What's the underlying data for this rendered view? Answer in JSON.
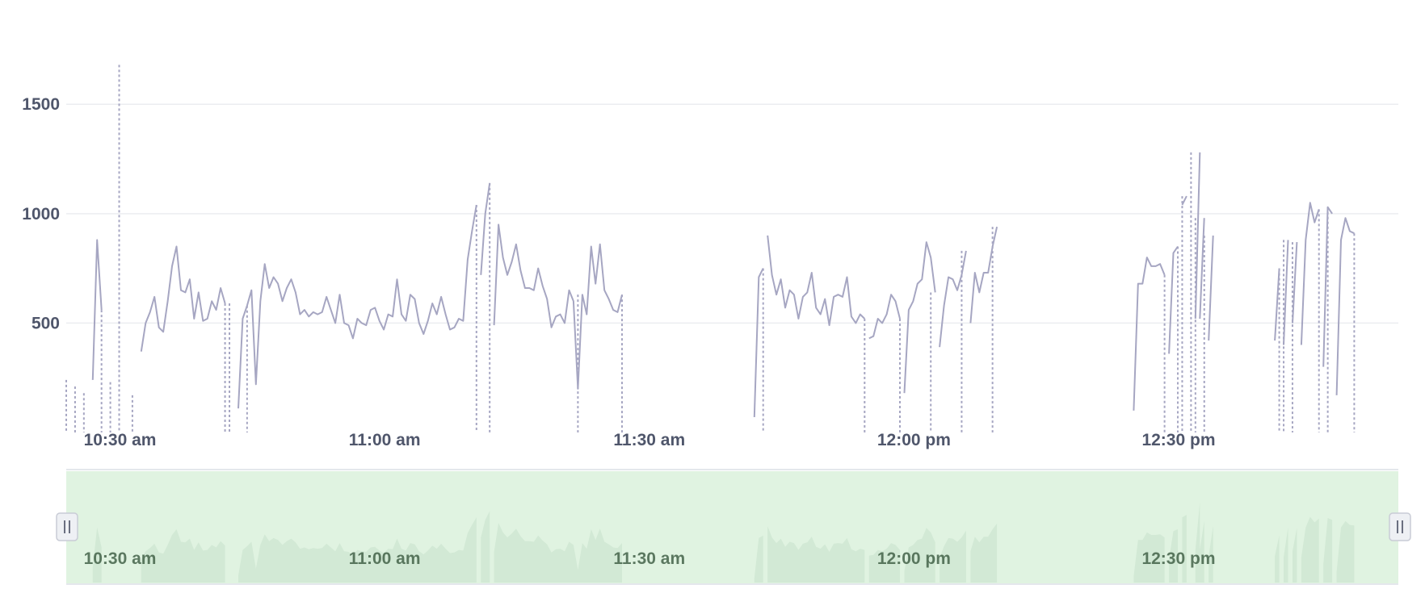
{
  "chart_data": {
    "type": "line",
    "title": "",
    "xlabel": "",
    "ylabel": "",
    "x_range": [
      "10:24",
      "12:55"
    ],
    "ylim": [
      0,
      1700
    ],
    "yticks": [
      {
        "value": 500,
        "label": "500"
      },
      {
        "value": 1000,
        "label": "1000"
      },
      {
        "value": 1500,
        "label": "1500"
      }
    ],
    "xticks": [
      {
        "time": "10:30",
        "label": "10:30 am"
      },
      {
        "time": "11:00",
        "label": "11:00 am"
      },
      {
        "time": "11:30",
        "label": "11:30 am"
      },
      {
        "time": "12:00",
        "label": "12:00 pm"
      },
      {
        "time": "12:30",
        "label": "12:30 pm"
      }
    ],
    "grid": true,
    "colors": {
      "line": "#a6a6c2",
      "grid": "#ebedf0",
      "axis": "#4f566b",
      "navigator_fill": "#e0f3e1",
      "navigator_area": "#cfe6d2",
      "handle": "#eef0f4"
    },
    "series": [
      {
        "segments": [
          [
            [
              "10:27:00",
              240
            ],
            [
              "10:27:30",
              880
            ],
            [
              "10:28:00",
              560
            ]
          ],
          [
            [
              "10:32:30",
              370
            ],
            [
              "10:33:00",
              500
            ],
            [
              "10:33:30",
              550
            ],
            [
              "10:34:00",
              620
            ],
            [
              "10:34:30",
              480
            ],
            [
              "10:35:00",
              460
            ],
            [
              "10:35:30",
              600
            ],
            [
              "10:36:00",
              760
            ],
            [
              "10:36:30",
              850
            ],
            [
              "10:37:00",
              650
            ],
            [
              "10:37:30",
              640
            ],
            [
              "10:38:00",
              700
            ],
            [
              "10:38:30",
              520
            ],
            [
              "10:39:00",
              640
            ],
            [
              "10:39:30",
              510
            ],
            [
              "10:40:00",
              520
            ],
            [
              "10:40:30",
              600
            ],
            [
              "10:41:00",
              560
            ],
            [
              "10:41:30",
              660
            ],
            [
              "10:42:00",
              590
            ]
          ],
          [
            [
              "10:43:30",
              110
            ],
            [
              "10:44:00",
              520
            ],
            [
              "10:44:30",
              580
            ],
            [
              "10:45:00",
              650
            ],
            [
              "10:45:30",
              220
            ],
            [
              "10:46:00",
              600
            ],
            [
              "10:46:30",
              770
            ],
            [
              "10:47:00",
              660
            ],
            [
              "10:47:30",
              710
            ],
            [
              "10:48:00",
              680
            ],
            [
              "10:48:30",
              600
            ],
            [
              "10:49:00",
              660
            ],
            [
              "10:49:30",
              700
            ],
            [
              "10:50:00",
              640
            ],
            [
              "10:50:30",
              540
            ],
            [
              "10:51:00",
              560
            ],
            [
              "10:51:30",
              530
            ],
            [
              "10:52:00",
              550
            ],
            [
              "10:52:30",
              540
            ],
            [
              "10:53:00",
              550
            ],
            [
              "10:53:30",
              620
            ],
            [
              "10:54:00",
              560
            ],
            [
              "10:54:30",
              500
            ],
            [
              "10:55:00",
              630
            ],
            [
              "10:55:30",
              500
            ],
            [
              "10:56:00",
              490
            ],
            [
              "10:56:30",
              430
            ],
            [
              "10:57:00",
              520
            ],
            [
              "10:57:30",
              500
            ],
            [
              "10:58:00",
              490
            ],
            [
              "10:58:30",
              560
            ],
            [
              "10:59:00",
              570
            ],
            [
              "10:59:30",
              510
            ],
            [
              "11:00:00",
              470
            ],
            [
              "11:00:30",
              540
            ],
            [
              "11:01:00",
              530
            ],
            [
              "11:01:30",
              700
            ],
            [
              "11:02:00",
              540
            ],
            [
              "11:02:30",
              510
            ],
            [
              "11:03:00",
              630
            ],
            [
              "11:03:30",
              610
            ],
            [
              "11:04:00",
              500
            ],
            [
              "11:04:30",
              450
            ],
            [
              "11:05:00",
              510
            ],
            [
              "11:05:30",
              590
            ],
            [
              "11:06:00",
              540
            ],
            [
              "11:06:30",
              620
            ],
            [
              "11:07:00",
              540
            ],
            [
              "11:07:30",
              470
            ],
            [
              "11:08:00",
              480
            ],
            [
              "11:08:30",
              520
            ],
            [
              "11:09:00",
              510
            ],
            [
              "11:09:30",
              790
            ],
            [
              "11:10:00",
              920
            ],
            [
              "11:10:30",
              1040
            ]
          ],
          [
            [
              "11:11:00",
              720
            ],
            [
              "11:11:30",
              1000
            ],
            [
              "11:12:00",
              1140
            ]
          ],
          [
            [
              "11:12:30",
              490
            ],
            [
              "11:13:00",
              950
            ],
            [
              "11:13:30",
              800
            ],
            [
              "11:14:00",
              720
            ],
            [
              "11:14:30",
              780
            ],
            [
              "11:15:00",
              860
            ],
            [
              "11:15:30",
              740
            ],
            [
              "11:16:00",
              660
            ],
            [
              "11:16:30",
              660
            ],
            [
              "11:17:00",
              650
            ],
            [
              "11:17:30",
              750
            ],
            [
              "11:18:00",
              670
            ],
            [
              "11:18:30",
              610
            ],
            [
              "11:19:00",
              480
            ],
            [
              "11:19:30",
              530
            ],
            [
              "11:20:00",
              540
            ],
            [
              "11:20:30",
              500
            ],
            [
              "11:21:00",
              650
            ],
            [
              "11:21:30",
              600
            ],
            [
              "11:22:00",
              200
            ],
            [
              "11:22:30",
              630
            ],
            [
              "11:23:00",
              540
            ],
            [
              "11:23:30",
              850
            ],
            [
              "11:24:00",
              680
            ],
            [
              "11:24:30",
              860
            ],
            [
              "11:25:00",
              650
            ],
            [
              "11:25:30",
              610
            ],
            [
              "11:26:00",
              560
            ],
            [
              "11:26:30",
              550
            ],
            [
              "11:27:00",
              630
            ]
          ],
          [
            [
              "11:42:00",
              70
            ],
            [
              "11:42:30",
              710
            ],
            [
              "11:43:00",
              750
            ]
          ],
          [
            [
              "11:43:30",
              900
            ],
            [
              "11:44:00",
              720
            ],
            [
              "11:44:30",
              630
            ],
            [
              "11:45:00",
              700
            ],
            [
              "11:45:30",
              570
            ],
            [
              "11:46:00",
              650
            ],
            [
              "11:46:30",
              630
            ],
            [
              "11:47:00",
              520
            ],
            [
              "11:47:30",
              620
            ],
            [
              "11:48:00",
              640
            ],
            [
              "11:48:30",
              730
            ],
            [
              "11:49:00",
              570
            ],
            [
              "11:49:30",
              540
            ],
            [
              "11:50:00",
              610
            ],
            [
              "11:50:30",
              490
            ],
            [
              "11:51:00",
              620
            ],
            [
              "11:51:30",
              630
            ],
            [
              "11:52:00",
              620
            ],
            [
              "11:52:30",
              710
            ],
            [
              "11:53:00",
              530
            ],
            [
              "11:53:30",
              500
            ],
            [
              "11:54:00",
              540
            ],
            [
              "11:54:30",
              520
            ]
          ],
          [
            [
              "11:55:00",
              430
            ],
            [
              "11:55:30",
              440
            ],
            [
              "11:56:00",
              520
            ],
            [
              "11:56:30",
              500
            ],
            [
              "11:57:00",
              540
            ],
            [
              "11:57:30",
              630
            ],
            [
              "11:58:00",
              600
            ],
            [
              "11:58:30",
              520
            ]
          ],
          [
            [
              "11:59:00",
              180
            ],
            [
              "11:59:30",
              560
            ],
            [
              "12:00:00",
              600
            ],
            [
              "12:00:30",
              680
            ],
            [
              "12:01:00",
              700
            ],
            [
              "12:01:30",
              870
            ],
            [
              "12:02:00",
              800
            ],
            [
              "12:02:30",
              640
            ]
          ],
          [
            [
              "12:03:00",
              390
            ],
            [
              "12:03:30",
              580
            ],
            [
              "12:04:00",
              710
            ],
            [
              "12:04:30",
              700
            ],
            [
              "12:05:00",
              650
            ],
            [
              "12:05:30",
              720
            ],
            [
              "12:06:00",
              830
            ]
          ],
          [
            [
              "12:06:30",
              500
            ],
            [
              "12:07:00",
              730
            ],
            [
              "12:07:30",
              640
            ],
            [
              "12:08:00",
              730
            ],
            [
              "12:08:30",
              730
            ],
            [
              "12:09:00",
              850
            ],
            [
              "12:09:30",
              940
            ]
          ],
          [
            [
              "12:25:00",
              100
            ],
            [
              "12:25:30",
              680
            ],
            [
              "12:26:00",
              680
            ],
            [
              "12:26:30",
              800
            ],
            [
              "12:27:00",
              760
            ],
            [
              "12:27:30",
              760
            ],
            [
              "12:28:00",
              770
            ],
            [
              "12:28:30",
              720
            ]
          ],
          [
            [
              "12:29:00",
              360
            ],
            [
              "12:29:30",
              820
            ],
            [
              "12:30:00",
              850
            ]
          ],
          [
            [
              "12:30:30",
              1040
            ],
            [
              "12:31:00",
              1080
            ]
          ],
          [
            [
              "12:32:00",
              520
            ],
            [
              "12:32:30",
              1280
            ]
          ],
          [
            [
              "12:32:30",
              520
            ],
            [
              "12:33:00",
              980
            ]
          ],
          [
            [
              "12:33:30",
              420
            ],
            [
              "12:34:00",
              900
            ]
          ],
          [
            [
              "12:41:00",
              420
            ],
            [
              "12:41:30",
              750
            ]
          ],
          [
            [
              "12:42:00",
              400
            ],
            [
              "12:42:30",
              880
            ]
          ],
          [
            [
              "12:43:00",
              500
            ],
            [
              "12:43:30",
              870
            ]
          ],
          [
            [
              "12:44:00",
              400
            ],
            [
              "12:44:30",
              880
            ],
            [
              "12:45:00",
              1050
            ],
            [
              "12:45:30",
              960
            ],
            [
              "12:46:00",
              1020
            ]
          ],
          [
            [
              "12:46:30",
              300
            ],
            [
              "12:47:00",
              1030
            ],
            [
              "12:47:30",
              1000
            ]
          ],
          [
            [
              "12:48:00",
              170
            ],
            [
              "12:48:30",
              880
            ],
            [
              "12:49:00",
              980
            ],
            [
              "12:49:30",
              920
            ],
            [
              "12:50:00",
              910
            ]
          ]
        ],
        "drops": [
          [
            "10:24:00",
            240
          ],
          [
            "10:25:00",
            210
          ],
          [
            "10:26:00",
            180
          ],
          [
            "10:28:00",
            560
          ],
          [
            "10:29:00",
            230
          ],
          [
            "10:30:00",
            1680
          ],
          [
            "10:31:30",
            170
          ],
          [
            "10:42:00",
            590
          ],
          [
            "10:42:30",
            590
          ],
          [
            "10:44:30",
            580
          ],
          [
            "11:10:30",
            1040
          ],
          [
            "11:12:00",
            1140
          ],
          [
            "11:22:00",
            630
          ],
          [
            "11:27:00",
            630
          ],
          [
            "11:43:00",
            750
          ],
          [
            "11:54:30",
            520
          ],
          [
            "11:58:30",
            520
          ],
          [
            "12:02:00",
            640
          ],
          [
            "12:05:30",
            830
          ],
          [
            "12:09:00",
            940
          ],
          [
            "12:28:30",
            720
          ],
          [
            "12:30:00",
            850
          ],
          [
            "12:30:30",
            1080
          ],
          [
            "12:31:30",
            1280
          ],
          [
            "12:32:00",
            980
          ],
          [
            "12:33:00",
            900
          ],
          [
            "12:41:30",
            750
          ],
          [
            "12:42:00",
            880
          ],
          [
            "12:43:00",
            870
          ],
          [
            "12:46:00",
            1020
          ],
          [
            "12:47:00",
            1030
          ],
          [
            "12:50:00",
            910
          ]
        ]
      }
    ]
  },
  "navigator": {
    "xticks": [
      {
        "time": "10:30",
        "label": "10:30 am"
      },
      {
        "time": "11:00",
        "label": "11:00 am"
      },
      {
        "time": "11:30",
        "label": "11:30 am"
      },
      {
        "time": "12:00",
        "label": "12:00 pm"
      },
      {
        "time": "12:30",
        "label": "12:30 pm"
      }
    ],
    "left_handle_icon": "pause-bars-icon",
    "right_handle_icon": "pause-bars-icon"
  }
}
